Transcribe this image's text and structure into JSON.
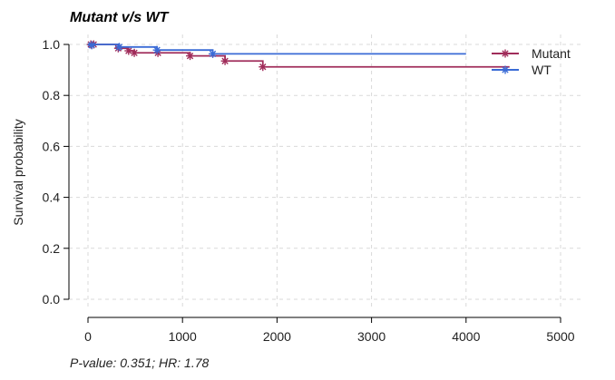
{
  "chart_data": {
    "type": "line",
    "title": "Mutant v/s WT",
    "xlabel": "",
    "ylabel": "Survival probability",
    "footnote": "P-value: 0.351; HR: 1.78",
    "xlim": [
      0,
      5000
    ],
    "ylim": [
      0.0,
      1.0
    ],
    "xticks": [
      0,
      1000,
      2000,
      3000,
      4000,
      5000
    ],
    "yticks": [
      0.0,
      0.2,
      0.4,
      0.6,
      0.8,
      1.0
    ],
    "xtick_labels": [
      "0",
      "1000",
      "2000",
      "3000",
      "4000",
      "5000"
    ],
    "ytick_labels": [
      "0.0",
      "0.2",
      "0.4",
      "0.6",
      "0.8",
      "1.0"
    ],
    "grid": true,
    "legend_position": "top-right",
    "series": [
      {
        "name": "Mutant",
        "color": "#a02c5a",
        "marker": "asterisk",
        "steps": [
          [
            0,
            1.0
          ],
          [
            320,
            0.985
          ],
          [
            430,
            0.975
          ],
          [
            490,
            0.967
          ],
          [
            1080,
            0.955
          ],
          [
            1450,
            0.935
          ],
          [
            1850,
            0.912
          ],
          [
            4460,
            0.912
          ]
        ],
        "censored": [
          [
            30,
            1.0
          ],
          [
            60,
            1.0
          ],
          [
            320,
            0.985
          ],
          [
            430,
            0.975
          ],
          [
            490,
            0.967
          ],
          [
            740,
            0.967
          ],
          [
            1080,
            0.955
          ],
          [
            1450,
            0.935
          ],
          [
            1850,
            0.912
          ]
        ]
      },
      {
        "name": "WT",
        "color": "#3a6bd6",
        "marker": "asterisk",
        "steps": [
          [
            0,
            1.0
          ],
          [
            330,
            0.99
          ],
          [
            730,
            0.978
          ],
          [
            1320,
            0.963
          ],
          [
            4000,
            0.963
          ]
        ],
        "censored": [
          [
            40,
            0.997
          ],
          [
            330,
            0.99
          ],
          [
            730,
            0.978
          ],
          [
            1320,
            0.963
          ]
        ]
      }
    ]
  }
}
